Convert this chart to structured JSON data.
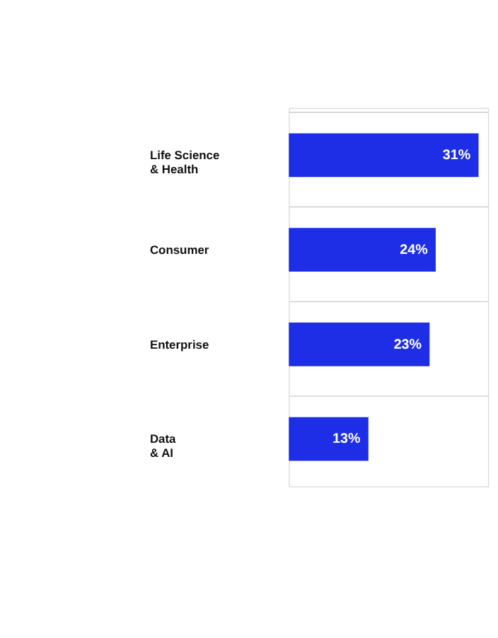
{
  "chart_data": {
    "type": "bar",
    "orientation": "horizontal",
    "categories": [
      "Life Science\n& Health",
      "Consumer",
      "Enterprise",
      "Data\n& AI"
    ],
    "values": [
      31,
      24,
      23,
      13
    ],
    "color": "#1d2ee6",
    "value_labels": [
      "31%",
      "24%",
      "23%",
      "13%"
    ],
    "grid": true
  }
}
